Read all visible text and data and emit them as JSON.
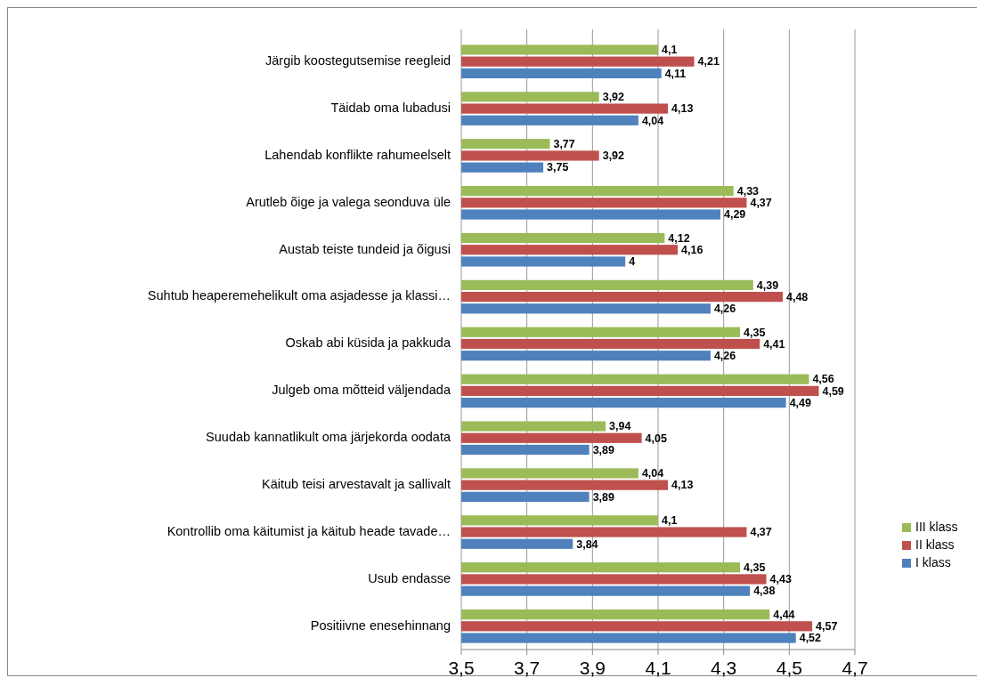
{
  "chart_data": {
    "type": "bar",
    "orientation": "horizontal",
    "categories": [
      "Järgib koostegutsemise reegleid",
      "Täidab oma lubadusi",
      "Lahendab konflikte rahumeelselt",
      "Arutleb õige ja valega seonduva üle",
      "Austab teiste tundeid ja õigusi",
      "Suhtub heaperemehelikult oma asjadesse ja klassi…",
      "Oskab abi  küsida ja pakkuda",
      "Julgeb oma mõtteid väljendada",
      "Suudab kannatlikult oma järjekorda oodata",
      "Käitub teisi arvestavalt ja sallivalt",
      "Kontrollib oma käitumist ja käitub heade tavade…",
      "Usub endasse",
      "Positiivne enesehinnang"
    ],
    "series": [
      {
        "name": "III klass",
        "color": "#9bbb59",
        "values": [
          4.1,
          3.92,
          3.77,
          4.33,
          4.12,
          4.39,
          4.35,
          4.56,
          3.94,
          4.04,
          4.1,
          4.35,
          4.44
        ],
        "value_labels": [
          "4,1",
          "3,92",
          "3,77",
          "4,33",
          "4,12",
          "4,39",
          "4,35",
          "4,56",
          "3,94",
          "4,04",
          "4,1",
          "4,35",
          "4,44"
        ]
      },
      {
        "name": "II klass",
        "color": "#c0504d",
        "values": [
          4.21,
          4.13,
          3.92,
          4.37,
          4.16,
          4.48,
          4.41,
          4.59,
          4.05,
          4.13,
          4.37,
          4.43,
          4.57
        ],
        "value_labels": [
          "4,21",
          "4,13",
          "3,92",
          "4,37",
          "4,16",
          "4,48",
          "4,41",
          "4,59",
          "4,05",
          "4,13",
          "4,37",
          "4,43",
          "4,57"
        ]
      },
      {
        "name": "I klass",
        "color": "#4f81bd",
        "values": [
          4.11,
          4.04,
          3.75,
          4.29,
          4,
          4.26,
          4.26,
          4.49,
          3.89,
          3.89,
          3.84,
          4.38,
          4.52
        ],
        "value_labels": [
          "4,11",
          "4,04",
          "3,75",
          "4,29",
          "4",
          "4,26",
          "4,26",
          "4,49",
          "3,89",
          "3,89",
          "3,84",
          "4,38",
          "4,52"
        ]
      }
    ],
    "xlim": [
      3.5,
      4.7
    ],
    "xticks": [
      {
        "value": 3.5,
        "label": "3,5"
      },
      {
        "value": 3.7,
        "label": "3,7"
      },
      {
        "value": 3.9,
        "label": "3,9"
      },
      {
        "value": 4.1,
        "label": "4,1"
      },
      {
        "value": 4.3,
        "label": "4,3"
      },
      {
        "value": 4.5,
        "label": "4,5"
      },
      {
        "value": 4.7,
        "label": "4,7"
      }
    ],
    "grid": "x",
    "legend": "right"
  }
}
